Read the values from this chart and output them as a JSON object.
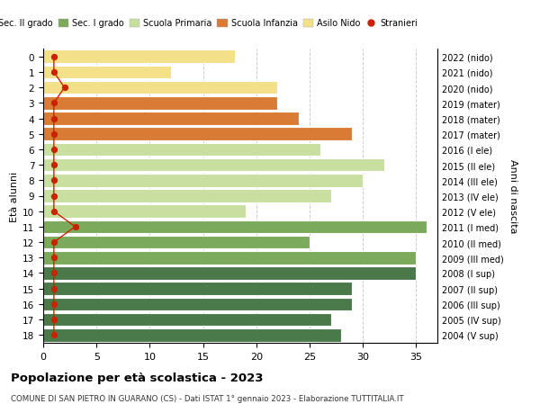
{
  "ages": [
    18,
    17,
    16,
    15,
    14,
    13,
    12,
    11,
    10,
    9,
    8,
    7,
    6,
    5,
    4,
    3,
    2,
    1,
    0
  ],
  "years": [
    "2004 (V sup)",
    "2005 (IV sup)",
    "2006 (III sup)",
    "2007 (II sup)",
    "2008 (I sup)",
    "2009 (III med)",
    "2010 (II med)",
    "2011 (I med)",
    "2012 (V ele)",
    "2013 (IV ele)",
    "2014 (III ele)",
    "2015 (II ele)",
    "2016 (I ele)",
    "2017 (mater)",
    "2018 (mater)",
    "2019 (mater)",
    "2020 (nido)",
    "2021 (nido)",
    "2022 (nido)"
  ],
  "bar_values": [
    28,
    27,
    29,
    29,
    35,
    35,
    25,
    36,
    19,
    27,
    30,
    32,
    26,
    29,
    24,
    22,
    22,
    12,
    18
  ],
  "stranieri": [
    1,
    1,
    1,
    1,
    1,
    1,
    1,
    3,
    1,
    1,
    1,
    1,
    1,
    1,
    1,
    1,
    2,
    1,
    1
  ],
  "bar_colors": [
    "#4a7a4a",
    "#4a7a4a",
    "#4a7a4a",
    "#4a7a4a",
    "#4a7a4a",
    "#7aaa5a",
    "#7aaa5a",
    "#7aaa5a",
    "#c8dfa0",
    "#c8dfa0",
    "#c8dfa0",
    "#c8dfa0",
    "#c8dfa0",
    "#d97b35",
    "#d97b35",
    "#d97b35",
    "#f5e08a",
    "#f5e08a",
    "#f5e08a"
  ],
  "legend_colors": [
    "#4a7a4a",
    "#7aaa5a",
    "#c8dfa0",
    "#d97b35",
    "#f5e08a",
    "#cc2200"
  ],
  "legend_labels": [
    "Sec. II grado",
    "Sec. I grado",
    "Scuola Primaria",
    "Scuola Infanzia",
    "Asilo Nido",
    "Stranieri"
  ],
  "ylabel_left": "Età alunni",
  "ylabel_right": "Anni di nascita",
  "title": "Popolazione per età scolastica - 2023",
  "subtitle": "COMUNE DI SAN PIETRO IN GUARANO (CS) - Dati ISTAT 1° gennaio 2023 - Elaborazione TUTTITALIA.IT",
  "xlim": [
    0,
    37
  ],
  "xticks": [
    0,
    5,
    10,
    15,
    20,
    25,
    30,
    35
  ],
  "grid_color": "#cccccc",
  "bar_edgecolor": "#ffffff"
}
